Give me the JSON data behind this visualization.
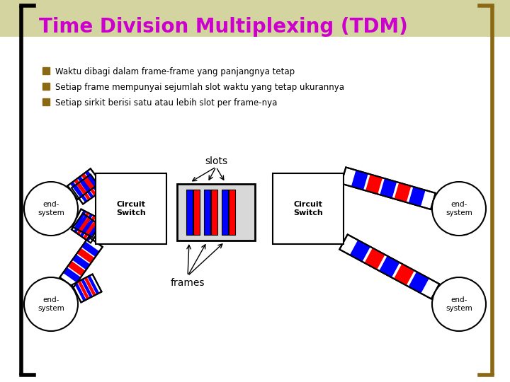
{
  "title": "Time Division Multiplexing (TDM)",
  "title_color": "#CC00CC",
  "title_fontsize": 20,
  "background_color": "#FFFFFF",
  "bracket_left_color": "#000000",
  "bracket_right_color": "#8B6914",
  "bullet_color": "#8B6914",
  "bullet_points": [
    "Waktu dibagi dalam frame-frame yang panjangnya tetap",
    "Setiap frame mempunyai sejumlah slot waktu yang tetap ukurannya",
    "Setiap sirkit berisi satu atau lebih slot per frame-nya"
  ],
  "header_bar_color": "#D4D4A0",
  "diagram_bg": "#FFFFFF"
}
